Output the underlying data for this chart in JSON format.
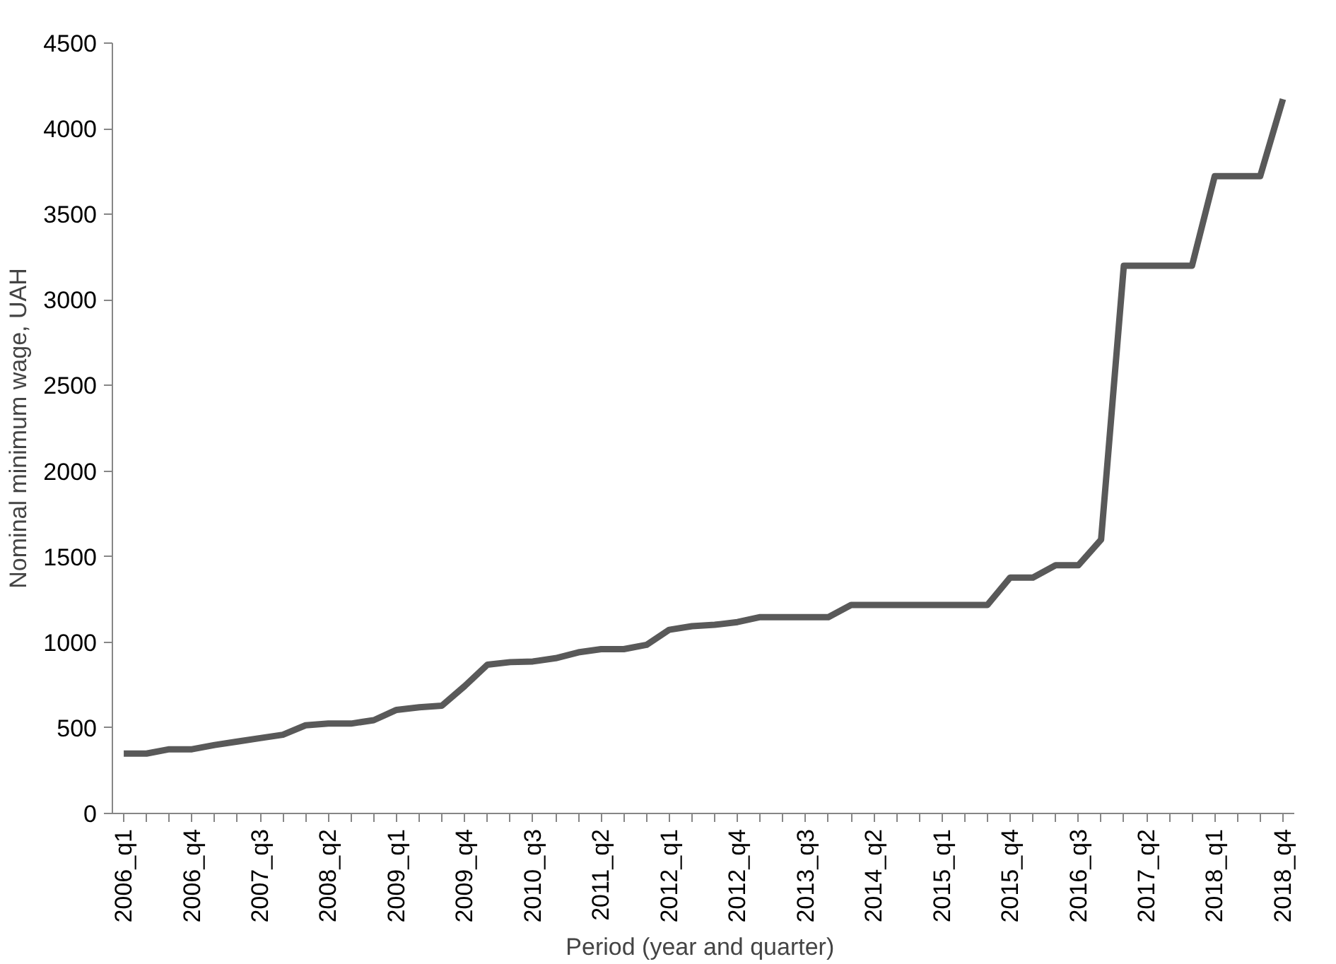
{
  "chart_data": {
    "type": "line",
    "xlabel": "Period  (year and quarter)",
    "ylabel": "Nominal minimum wage, UAH",
    "categories": [
      "2006_q1",
      null,
      null,
      "2006_q4",
      null,
      null,
      "2007_q3",
      null,
      null,
      "2008_q2",
      null,
      null,
      "2009_q1",
      null,
      null,
      "2009_q4",
      null,
      null,
      "2010_q3",
      null,
      null,
      "2011_q2",
      null,
      null,
      "2012_q1",
      null,
      null,
      "2012_q4",
      null,
      null,
      "2013_q3",
      null,
      null,
      "2014_q2",
      null,
      null,
      "2015_q1",
      null,
      null,
      "2015_q4",
      null,
      null,
      "2016_q3",
      null,
      null,
      "2017_q2",
      null,
      null,
      "2018_q1",
      null,
      null,
      "2018_q4"
    ],
    "series": [
      {
        "color": "#595959",
        "values": [
          350,
          350,
          375,
          375,
          400,
          420,
          440,
          460,
          515,
          525,
          525,
          545,
          605,
          620,
          630,
          744,
          869,
          884,
          888,
          907,
          941,
          960,
          960,
          985,
          1073,
          1094,
          1102,
          1118,
          1147,
          1147,
          1147,
          1147,
          1218,
          1218,
          1218,
          1218,
          1218,
          1218,
          1218,
          1378,
          1378,
          1450,
          1450,
          1600,
          3200,
          3200,
          3200,
          3200,
          3723,
          3723,
          3723,
          4173
        ]
      }
    ],
    "ylim": [
      0,
      4500
    ],
    "yticks": [
      0,
      500,
      1000,
      1500,
      2000,
      2500,
      3000,
      3500,
      4000,
      4500
    ],
    "grid": false,
    "marker": "none",
    "line_style": "solid"
  }
}
